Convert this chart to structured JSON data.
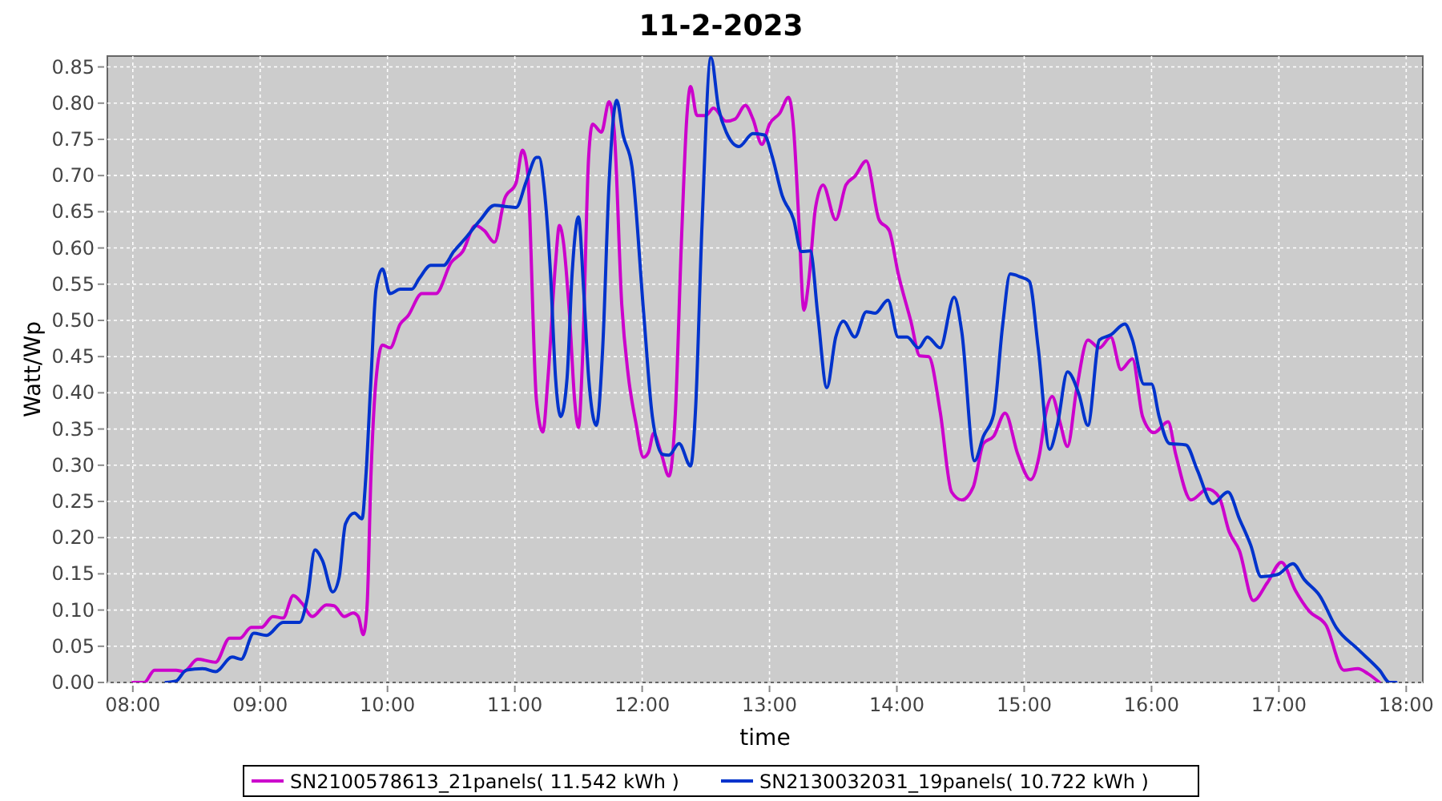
{
  "chart_data": {
    "type": "line",
    "title": "11-2-2023",
    "xlabel": "time",
    "ylabel": "Watt/Wp",
    "grid": true,
    "legend": "bottom",
    "xlim": [
      7.8,
      18.13
    ],
    "ylim": [
      0,
      0.865
    ],
    "xticks": [
      {
        "value": 8,
        "label": "08:00"
      },
      {
        "value": 9,
        "label": "09:00"
      },
      {
        "value": 10,
        "label": "10:00"
      },
      {
        "value": 11,
        "label": "11:00"
      },
      {
        "value": 12,
        "label": "12:00"
      },
      {
        "value": 13,
        "label": "13:00"
      },
      {
        "value": 14,
        "label": "14:00"
      },
      {
        "value": 15,
        "label": "15:00"
      },
      {
        "value": 16,
        "label": "16:00"
      },
      {
        "value": 17,
        "label": "17:00"
      },
      {
        "value": 18,
        "label": "18:00"
      }
    ],
    "yticks": [
      {
        "value": 0,
        "label": "0.00"
      },
      {
        "value": 0.05,
        "label": "0.05"
      },
      {
        "value": 0.1,
        "label": "0.10"
      },
      {
        "value": 0.15,
        "label": "0.15"
      },
      {
        "value": 0.2,
        "label": "0.20"
      },
      {
        "value": 0.25,
        "label": "0.25"
      },
      {
        "value": 0.3,
        "label": "0.30"
      },
      {
        "value": 0.35,
        "label": "0.35"
      },
      {
        "value": 0.4,
        "label": "0.40"
      },
      {
        "value": 0.45,
        "label": "0.45"
      },
      {
        "value": 0.5,
        "label": "0.50"
      },
      {
        "value": 0.55,
        "label": "0.55"
      },
      {
        "value": 0.6,
        "label": "0.60"
      },
      {
        "value": 0.65,
        "label": "0.65"
      },
      {
        "value": 0.7,
        "label": "0.70"
      },
      {
        "value": 0.75,
        "label": "0.75"
      },
      {
        "value": 0.8,
        "label": "0.80"
      },
      {
        "value": 0.85,
        "label": "0.85"
      }
    ],
    "series": [
      {
        "name": "SN2100578613_21panels( 11.542 kWh )",
        "color": "#cc00cc",
        "x": [
          8.0,
          8.09,
          8.17,
          8.34,
          8.4,
          8.51,
          8.65,
          8.76,
          8.84,
          8.93,
          9.01,
          9.1,
          9.18,
          9.26,
          9.33,
          9.41,
          9.52,
          9.58,
          9.66,
          9.73,
          9.77,
          9.81,
          9.84,
          9.87,
          9.91,
          9.96,
          10.02,
          10.1,
          10.16,
          10.27,
          10.38,
          10.5,
          10.59,
          10.69,
          10.76,
          10.84,
          10.92,
          11.01,
          11.06,
          11.1,
          11.17,
          11.22,
          11.26,
          11.32,
          11.35,
          11.38,
          11.43,
          11.47,
          11.5,
          11.53,
          11.58,
          11.61,
          11.68,
          11.74,
          11.78,
          11.84,
          11.89,
          11.95,
          12.01,
          12.05,
          12.09,
          12.15,
          12.21,
          12.26,
          12.31,
          12.35,
          12.38,
          12.43,
          12.5,
          12.56,
          12.66,
          12.73,
          12.81,
          12.87,
          12.94,
          13.0,
          13.08,
          13.15,
          13.19,
          13.23,
          13.27,
          13.31,
          13.36,
          13.42,
          13.52,
          13.6,
          13.67,
          13.76,
          13.86,
          13.94,
          14.01,
          14.11,
          14.18,
          14.25,
          14.34,
          14.43,
          14.51,
          14.6,
          14.68,
          14.76,
          14.85,
          14.95,
          15.05,
          15.12,
          15.17,
          15.22,
          15.28,
          15.34,
          15.41,
          15.5,
          15.59,
          15.68,
          15.76,
          15.85,
          15.93,
          16.02,
          16.13,
          16.19,
          16.31,
          16.44,
          16.53,
          16.61,
          16.69,
          16.8,
          16.91,
          17.02,
          17.13,
          17.24,
          17.37,
          17.51,
          17.62,
          17.7,
          17.79
        ],
        "values": [
          0,
          0,
          0.017,
          0.017,
          0.015,
          0.032,
          0.028,
          0.061,
          0.061,
          0.076,
          0.076,
          0.091,
          0.089,
          0.12,
          0.109,
          0.091,
          0.107,
          0.106,
          0.091,
          0.096,
          0.091,
          0.066,
          0.107,
          0.285,
          0.418,
          0.466,
          0.462,
          0.495,
          0.506,
          0.537,
          0.537,
          0.58,
          0.595,
          0.631,
          0.624,
          0.608,
          0.668,
          0.69,
          0.735,
          0.705,
          0.389,
          0.346,
          0.42,
          0.58,
          0.631,
          0.61,
          0.506,
          0.389,
          0.352,
          0.44,
          0.727,
          0.771,
          0.76,
          0.802,
          0.763,
          0.521,
          0.425,
          0.359,
          0.311,
          0.318,
          0.344,
          0.316,
          0.285,
          0.37,
          0.617,
          0.779,
          0.823,
          0.783,
          0.783,
          0.793,
          0.775,
          0.778,
          0.797,
          0.778,
          0.743,
          0.771,
          0.786,
          0.808,
          0.763,
          0.639,
          0.514,
          0.558,
          0.654,
          0.687,
          0.639,
          0.687,
          0.699,
          0.72,
          0.639,
          0.624,
          0.565,
          0.499,
          0.451,
          0.45,
          0.374,
          0.263,
          0.252,
          0.27,
          0.33,
          0.34,
          0.372,
          0.315,
          0.28,
          0.315,
          0.372,
          0.395,
          0.36,
          0.326,
          0.403,
          0.473,
          0.462,
          0.477,
          0.432,
          0.447,
          0.367,
          0.345,
          0.36,
          0.315,
          0.252,
          0.267,
          0.256,
          0.208,
          0.182,
          0.113,
          0.138,
          0.166,
          0.127,
          0.098,
          0.079,
          0.017,
          0.019,
          0.012,
          0
        ]
      },
      {
        "name": "SN2130032031_19panels( 10.722 kWh )",
        "color": "#0033cc",
        "x": [
          8.26,
          8.34,
          8.42,
          8.55,
          8.65,
          8.78,
          8.85,
          8.95,
          9.05,
          9.18,
          9.31,
          9.37,
          9.43,
          9.49,
          9.57,
          9.62,
          9.67,
          9.74,
          9.8,
          9.83,
          9.87,
          9.91,
          9.96,
          10.02,
          10.1,
          10.19,
          10.25,
          10.34,
          10.44,
          10.52,
          10.61,
          10.73,
          10.84,
          10.94,
          11.01,
          11.09,
          11.17,
          11.19,
          11.23,
          11.28,
          11.32,
          11.36,
          11.41,
          11.45,
          11.5,
          11.54,
          11.58,
          11.64,
          11.69,
          11.74,
          11.8,
          11.85,
          11.92,
          12.01,
          12.08,
          12.16,
          12.21,
          12.29,
          12.38,
          12.42,
          12.47,
          12.54,
          12.6,
          12.66,
          12.76,
          12.87,
          12.96,
          13.02,
          13.1,
          13.19,
          13.25,
          13.32,
          13.38,
          13.45,
          13.52,
          13.58,
          13.67,
          13.76,
          13.83,
          13.93,
          14.01,
          14.08,
          14.17,
          14.24,
          14.34,
          14.45,
          14.51,
          14.61,
          14.68,
          14.76,
          14.83,
          14.89,
          14.97,
          15.04,
          15.11,
          15.2,
          15.26,
          15.34,
          15.43,
          15.5,
          15.59,
          15.68,
          15.79,
          15.85,
          15.94,
          16.0,
          16.06,
          16.14,
          16.27,
          16.36,
          16.48,
          16.6,
          16.69,
          16.78,
          16.86,
          16.99,
          17.11,
          17.2,
          17.32,
          17.45,
          17.62,
          17.79,
          17.87,
          17.92
        ],
        "values": [
          0,
          0.002,
          0.017,
          0.019,
          0.015,
          0.035,
          0.032,
          0.068,
          0.065,
          0.083,
          0.083,
          0.116,
          0.183,
          0.168,
          0.125,
          0.145,
          0.219,
          0.234,
          0.226,
          0.284,
          0.418,
          0.543,
          0.571,
          0.537,
          0.543,
          0.543,
          0.558,
          0.576,
          0.576,
          0.595,
          0.613,
          0.639,
          0.659,
          0.657,
          0.656,
          0.692,
          0.725,
          0.725,
          0.683,
          0.565,
          0.42,
          0.367,
          0.42,
          0.565,
          0.643,
          0.543,
          0.42,
          0.355,
          0.462,
          0.69,
          0.804,
          0.756,
          0.712,
          0.514,
          0.367,
          0.315,
          0.314,
          0.33,
          0.299,
          0.38,
          0.632,
          0.863,
          0.793,
          0.76,
          0.74,
          0.758,
          0.756,
          0.727,
          0.672,
          0.639,
          0.595,
          0.596,
          0.506,
          0.407,
          0.477,
          0.499,
          0.477,
          0.512,
          0.51,
          0.528,
          0.477,
          0.477,
          0.462,
          0.477,
          0.462,
          0.532,
          0.484,
          0.306,
          0.34,
          0.37,
          0.492,
          0.564,
          0.56,
          0.554,
          0.462,
          0.322,
          0.355,
          0.429,
          0.398,
          0.355,
          0.473,
          0.48,
          0.495,
          0.473,
          0.412,
          0.412,
          0.367,
          0.33,
          0.328,
          0.293,
          0.247,
          0.263,
          0.226,
          0.189,
          0.146,
          0.149,
          0.164,
          0.142,
          0.12,
          0.076,
          0.046,
          0.017,
          0,
          0
        ]
      }
    ]
  }
}
